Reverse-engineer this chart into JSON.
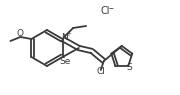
{
  "bg_color": "#ffffff",
  "line_color": "#3a3a3a",
  "lw": 1.3,
  "fig_w": 1.8,
  "fig_h": 0.95,
  "dpi": 100,
  "xlim": [
    0,
    180
  ],
  "ylim": [
    0,
    95
  ]
}
